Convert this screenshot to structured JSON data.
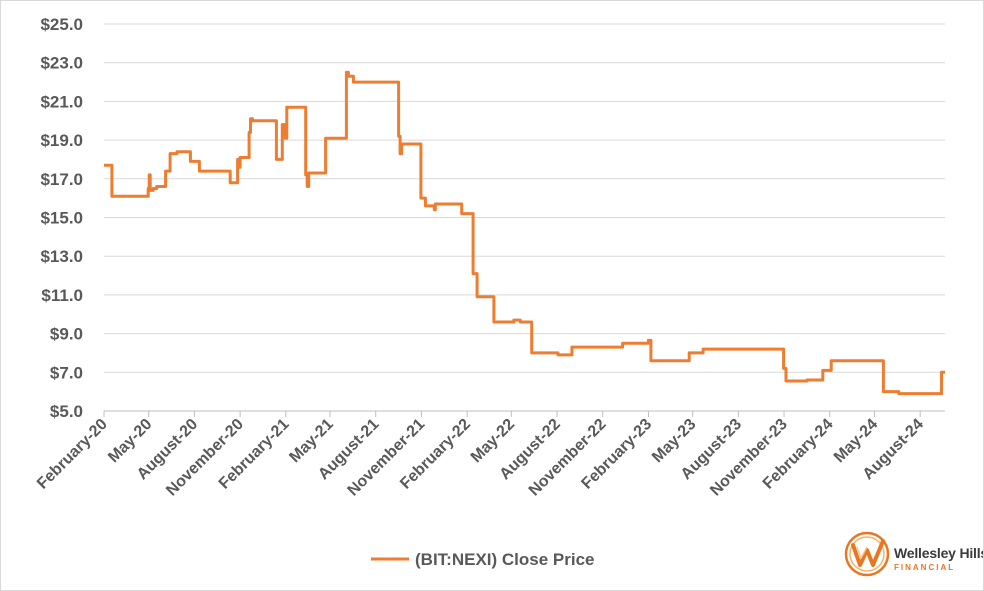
{
  "chart_data": {
    "type": "line",
    "title": "",
    "xlabel": "",
    "ylabel": "",
    "ylim": [
      5,
      25
    ],
    "yticks": [
      "$25.0",
      "$23.0",
      "$21.0",
      "$19.0",
      "$17.0",
      "$15.0",
      "$13.0",
      "$11.0",
      "$9.0",
      "$7.0",
      "$5.0"
    ],
    "ytick_values": [
      25,
      23,
      21,
      19,
      17,
      15,
      13,
      11,
      9,
      7,
      5
    ],
    "xlim": [
      "2020-02-01",
      "2024-09-20"
    ],
    "xticks": [
      "February-20",
      "May-20",
      "August-20",
      "November-20",
      "February-21",
      "May-21",
      "August-21",
      "November-21",
      "February-22",
      "May-22",
      "August-22",
      "November-22",
      "February-23",
      "May-23",
      "August-23",
      "November-23",
      "February-24",
      "May-24",
      "August-24"
    ],
    "xtick_dates": [
      "2020-02-01",
      "2020-05-01",
      "2020-08-01",
      "2020-11-01",
      "2021-02-01",
      "2021-05-01",
      "2021-08-01",
      "2021-11-01",
      "2022-02-01",
      "2022-05-01",
      "2022-08-01",
      "2022-11-01",
      "2023-02-01",
      "2023-05-01",
      "2023-08-01",
      "2023-11-01",
      "2024-02-01",
      "2024-05-01",
      "2024-08-01"
    ],
    "grid": true,
    "legend_position": "bottom-center",
    "series": [
      {
        "name": "(BIT:NEXI) Close Price",
        "color": "#ed7d31",
        "step": true,
        "points": [
          [
            "2020-02-01",
            17.7
          ],
          [
            "2020-02-14",
            17.7
          ],
          [
            "2020-02-17",
            16.1
          ],
          [
            "2020-04-28",
            16.1
          ],
          [
            "2020-04-30",
            16.5
          ],
          [
            "2020-05-02",
            17.2
          ],
          [
            "2020-05-04",
            16.4
          ],
          [
            "2020-05-10",
            16.5
          ],
          [
            "2020-05-17",
            16.6
          ],
          [
            "2020-06-02",
            16.6
          ],
          [
            "2020-06-04",
            17.4
          ],
          [
            "2020-06-10",
            17.4
          ],
          [
            "2020-06-13",
            18.3
          ],
          [
            "2020-06-24",
            18.3
          ],
          [
            "2020-06-27",
            18.4
          ],
          [
            "2020-07-21",
            18.4
          ],
          [
            "2020-07-24",
            17.9
          ],
          [
            "2020-08-08",
            17.9
          ],
          [
            "2020-08-11",
            17.4
          ],
          [
            "2020-10-10",
            17.4
          ],
          [
            "2020-10-12",
            16.8
          ],
          [
            "2020-10-24",
            16.8
          ],
          [
            "2020-10-27",
            18.0
          ],
          [
            "2020-10-30",
            17.6
          ],
          [
            "2020-11-01",
            18.1
          ],
          [
            "2020-11-16",
            18.1
          ],
          [
            "2020-11-19",
            19.4
          ],
          [
            "2020-11-22",
            20.1
          ],
          [
            "2020-11-26",
            20.0
          ],
          [
            "2021-01-10",
            20.0
          ],
          [
            "2021-01-13",
            18.0
          ],
          [
            "2021-01-22",
            18.0
          ],
          [
            "2021-01-25",
            19.8
          ],
          [
            "2021-01-31",
            19.1
          ],
          [
            "2021-02-03",
            20.7
          ],
          [
            "2021-03-10",
            20.7
          ],
          [
            "2021-03-13",
            17.2
          ],
          [
            "2021-03-16",
            16.6
          ],
          [
            "2021-03-19",
            17.3
          ],
          [
            "2021-04-19",
            17.3
          ],
          [
            "2021-04-22",
            19.1
          ],
          [
            "2021-05-31",
            19.1
          ],
          [
            "2021-06-03",
            22.5
          ],
          [
            "2021-06-07",
            22.3
          ],
          [
            "2021-06-14",
            22.3
          ],
          [
            "2021-06-17",
            22.0
          ],
          [
            "2021-09-13",
            22.0
          ],
          [
            "2021-09-16",
            19.2
          ],
          [
            "2021-09-19",
            18.3
          ],
          [
            "2021-09-22",
            18.8
          ],
          [
            "2021-10-28",
            18.8
          ],
          [
            "2021-10-31",
            16.0
          ],
          [
            "2021-11-06",
            16.0
          ],
          [
            "2021-11-09",
            15.6
          ],
          [
            "2021-11-25",
            15.6
          ],
          [
            "2021-11-27",
            15.4
          ],
          [
            "2021-11-29",
            15.7
          ],
          [
            "2022-01-18",
            15.7
          ],
          [
            "2022-01-21",
            15.2
          ],
          [
            "2022-02-10",
            15.2
          ],
          [
            "2022-02-13",
            12.1
          ],
          [
            "2022-02-18",
            12.1
          ],
          [
            "2022-02-21",
            10.9
          ],
          [
            "2022-03-24",
            10.9
          ],
          [
            "2022-03-27",
            9.6
          ],
          [
            "2022-05-03",
            9.6
          ],
          [
            "2022-05-06",
            9.7
          ],
          [
            "2022-05-16",
            9.7
          ],
          [
            "2022-05-19",
            9.6
          ],
          [
            "2022-06-08",
            9.6
          ],
          [
            "2022-06-11",
            8.0
          ],
          [
            "2022-07-31",
            8.0
          ],
          [
            "2022-08-03",
            7.9
          ],
          [
            "2022-08-28",
            7.9
          ],
          [
            "2022-08-31",
            8.3
          ],
          [
            "2022-12-08",
            8.3
          ],
          [
            "2022-12-11",
            8.5
          ],
          [
            "2023-01-29",
            8.5
          ],
          [
            "2023-02-01",
            8.65
          ],
          [
            "2023-02-03",
            8.65
          ],
          [
            "2023-02-06",
            7.6
          ],
          [
            "2023-04-21",
            7.6
          ],
          [
            "2023-04-24",
            8.0
          ],
          [
            "2023-05-19",
            8.0
          ],
          [
            "2023-05-22",
            8.2
          ],
          [
            "2023-10-28",
            8.2
          ],
          [
            "2023-10-31",
            7.2
          ],
          [
            "2023-11-02",
            7.2
          ],
          [
            "2023-11-05",
            6.55
          ],
          [
            "2023-12-14",
            6.55
          ],
          [
            "2023-12-17",
            6.6
          ],
          [
            "2024-01-15",
            6.6
          ],
          [
            "2024-01-18",
            7.1
          ],
          [
            "2024-02-01",
            7.1
          ],
          [
            "2024-02-04",
            7.6
          ],
          [
            "2024-05-16",
            7.6
          ],
          [
            "2024-05-19",
            6.0
          ],
          [
            "2024-06-16",
            6.0
          ],
          [
            "2024-06-19",
            5.9
          ],
          [
            "2024-09-10",
            5.9
          ],
          [
            "2024-09-13",
            7.0
          ],
          [
            "2024-09-20",
            7.0
          ]
        ]
      }
    ]
  },
  "logo": {
    "name": "Wellesley Hills",
    "subtitle": "FINANCIAL",
    "brand_color": "#e87722"
  }
}
